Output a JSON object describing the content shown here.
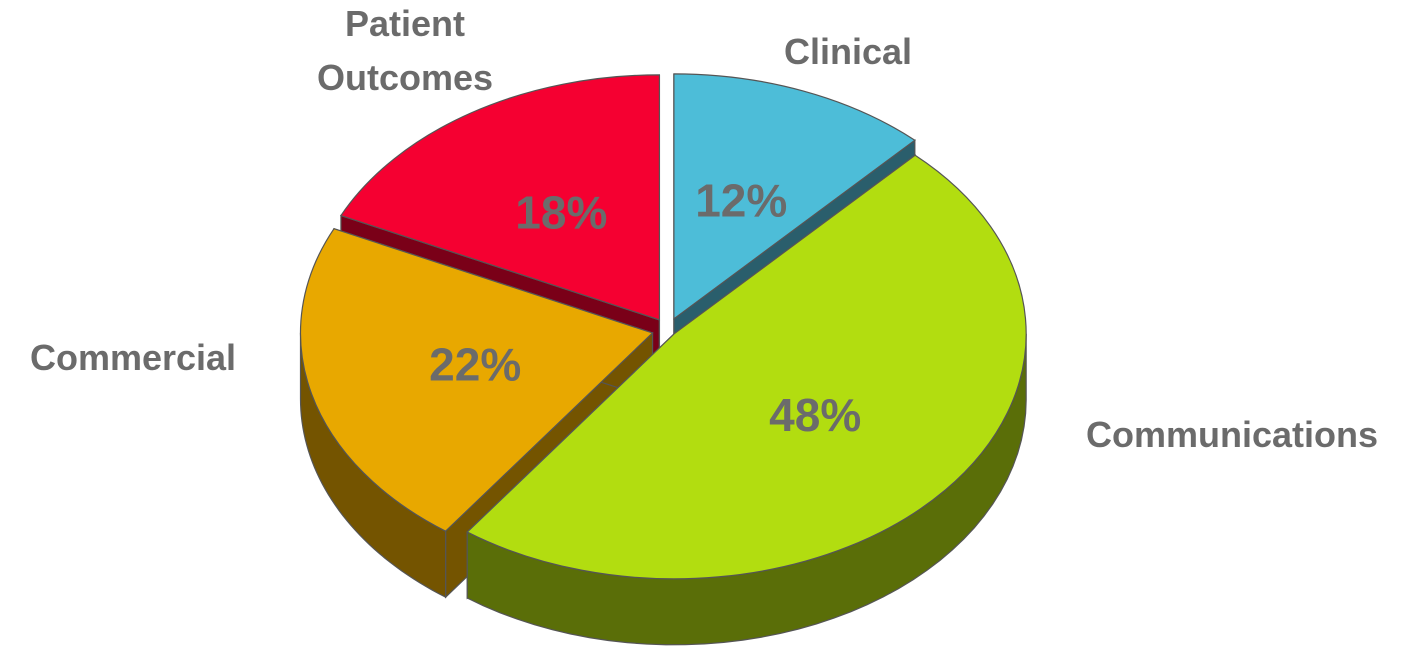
{
  "chart_data": {
    "type": "pie",
    "title": "",
    "categories": [
      "Clinical",
      "Communications",
      "Commercial",
      "Patient Outcomes"
    ],
    "values": [
      12,
      48,
      22,
      18
    ],
    "value_labels": [
      "12%",
      "48%",
      "22%",
      "18%"
    ],
    "colors": [
      "#4dbdd8",
      "#b2dd10",
      "#e8a800",
      "#f50031"
    ],
    "side_colors": [
      "#2a5e6c",
      "#5a6e08",
      "#745400",
      "#7a0018"
    ],
    "style": "3d-exploded",
    "legend": "none"
  }
}
